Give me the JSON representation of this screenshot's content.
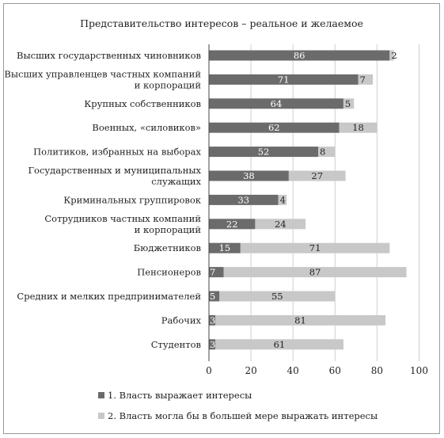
{
  "chart_data": {
    "type": "bar",
    "stacked": true,
    "orientation": "horizontal",
    "title": "Представительство интересов – реальное и желаемое",
    "xlim": [
      0,
      100
    ],
    "xticks": [
      "0",
      "20",
      "40",
      "60",
      "80",
      "100"
    ],
    "grid": true,
    "legend_placement": "bottom",
    "categories": [
      "Высших государственных чиновников",
      "Высших управленцев частных компаний|и корпораций",
      "Крупных собственников",
      "Военных, «силовиков»",
      "Политиков, избранных на выборах",
      "Государственных и муниципальных|служащих",
      "Криминальных группировок",
      "Сотрудников частных компаний|и корпораций",
      "Бюджетников",
      "Пенсионеров",
      "Средних и мелких предпринимателей",
      "Рабочих",
      "Студентов"
    ],
    "series": [
      {
        "name": "1. Власть выражает интересы",
        "color": "#6b6b6b",
        "values": [
          86,
          71,
          64,
          62,
          52,
          38,
          33,
          22,
          15,
          7,
          5,
          3,
          3
        ]
      },
      {
        "name": "2. Власть могла бы в большей мере выражать интересы",
        "color": "#c8c8c8",
        "values": [
          2,
          7,
          5,
          18,
          8,
          27,
          4,
          24,
          71,
          87,
          55,
          81,
          61
        ]
      }
    ]
  }
}
